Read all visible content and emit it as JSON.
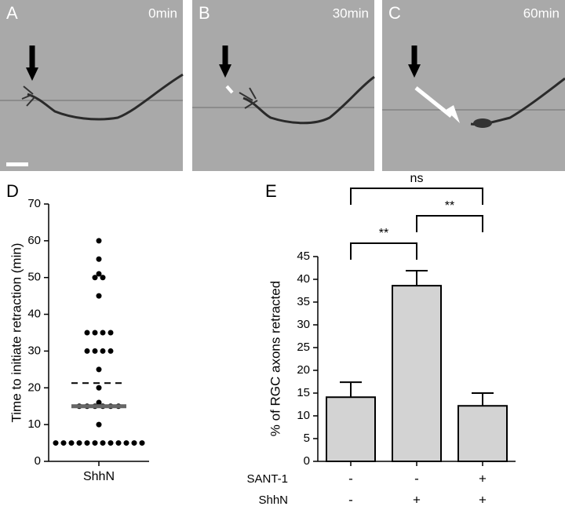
{
  "panels": [
    {
      "label": "A",
      "time": "0min"
    },
    {
      "label": "B",
      "time": "30min"
    },
    {
      "label": "C",
      "time": "60min"
    }
  ],
  "chart_data": [
    {
      "type": "strip",
      "panel_label": "D",
      "ylabel": "Time to initiate retraction (min)",
      "categories": [
        "ShhN"
      ],
      "values": [
        60,
        55,
        51,
        50,
        50,
        45,
        35,
        35,
        35,
        35,
        30,
        30,
        30,
        30,
        25,
        20,
        16,
        15,
        15,
        15,
        15,
        15,
        15,
        10,
        5,
        5,
        5,
        5,
        5,
        5,
        5,
        5,
        5,
        5,
        5,
        5
      ],
      "reference_lines": [
        {
          "value": 21.3,
          "style": "dashed"
        },
        {
          "value": 15,
          "style": "solid"
        }
      ],
      "color": "#000000",
      "ylim": [
        0,
        70
      ],
      "yticks": [
        0,
        10,
        20,
        30,
        40,
        50,
        60,
        70
      ]
    },
    {
      "type": "bar",
      "panel_label": "E",
      "ylabel": "% of RGC axons retracted",
      "categories": [
        null,
        null,
        null
      ],
      "values": [
        14.1,
        38.6,
        12.2
      ],
      "errors": [
        3.3,
        3.3,
        2.8
      ],
      "color": "#d3d3d3",
      "conditions": [
        {
          "name": "SANT-1",
          "values": [
            "-",
            "-",
            "+"
          ]
        },
        {
          "name": "ShhN",
          "values": [
            "-",
            "+",
            "+"
          ]
        }
      ],
      "significance": [
        {
          "from": 0,
          "to": 1,
          "label": "**"
        },
        {
          "from": 1,
          "to": 2,
          "label": "**"
        },
        {
          "from": 0,
          "to": 2,
          "label": "ns"
        }
      ],
      "ylim": [
        0,
        45
      ],
      "yticks": [
        0,
        5,
        10,
        15,
        20,
        25,
        30,
        35,
        40,
        45
      ]
    }
  ]
}
